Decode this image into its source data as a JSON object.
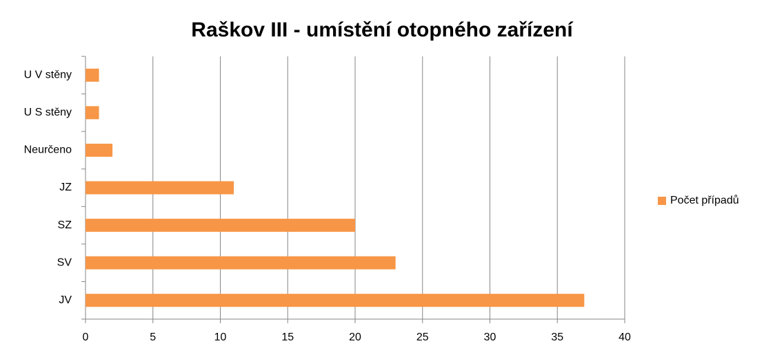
{
  "chart_data": {
    "type": "bar",
    "orientation": "horizontal",
    "title": "Raškov III - umístění otopného zařízení",
    "categories": [
      "U V stěny",
      "U S stěny",
      "Neurčeno",
      "JZ",
      "SZ",
      "SV",
      "JV"
    ],
    "series": [
      {
        "name": "Počet případů",
        "color": "#f79646",
        "values": [
          1,
          1,
          2,
          11,
          20,
          23,
          37
        ]
      }
    ],
    "xlim": [
      0,
      40
    ],
    "xticks": [
      0,
      5,
      10,
      15,
      20,
      25,
      30,
      35,
      40
    ],
    "grid": true,
    "legend": "right"
  }
}
